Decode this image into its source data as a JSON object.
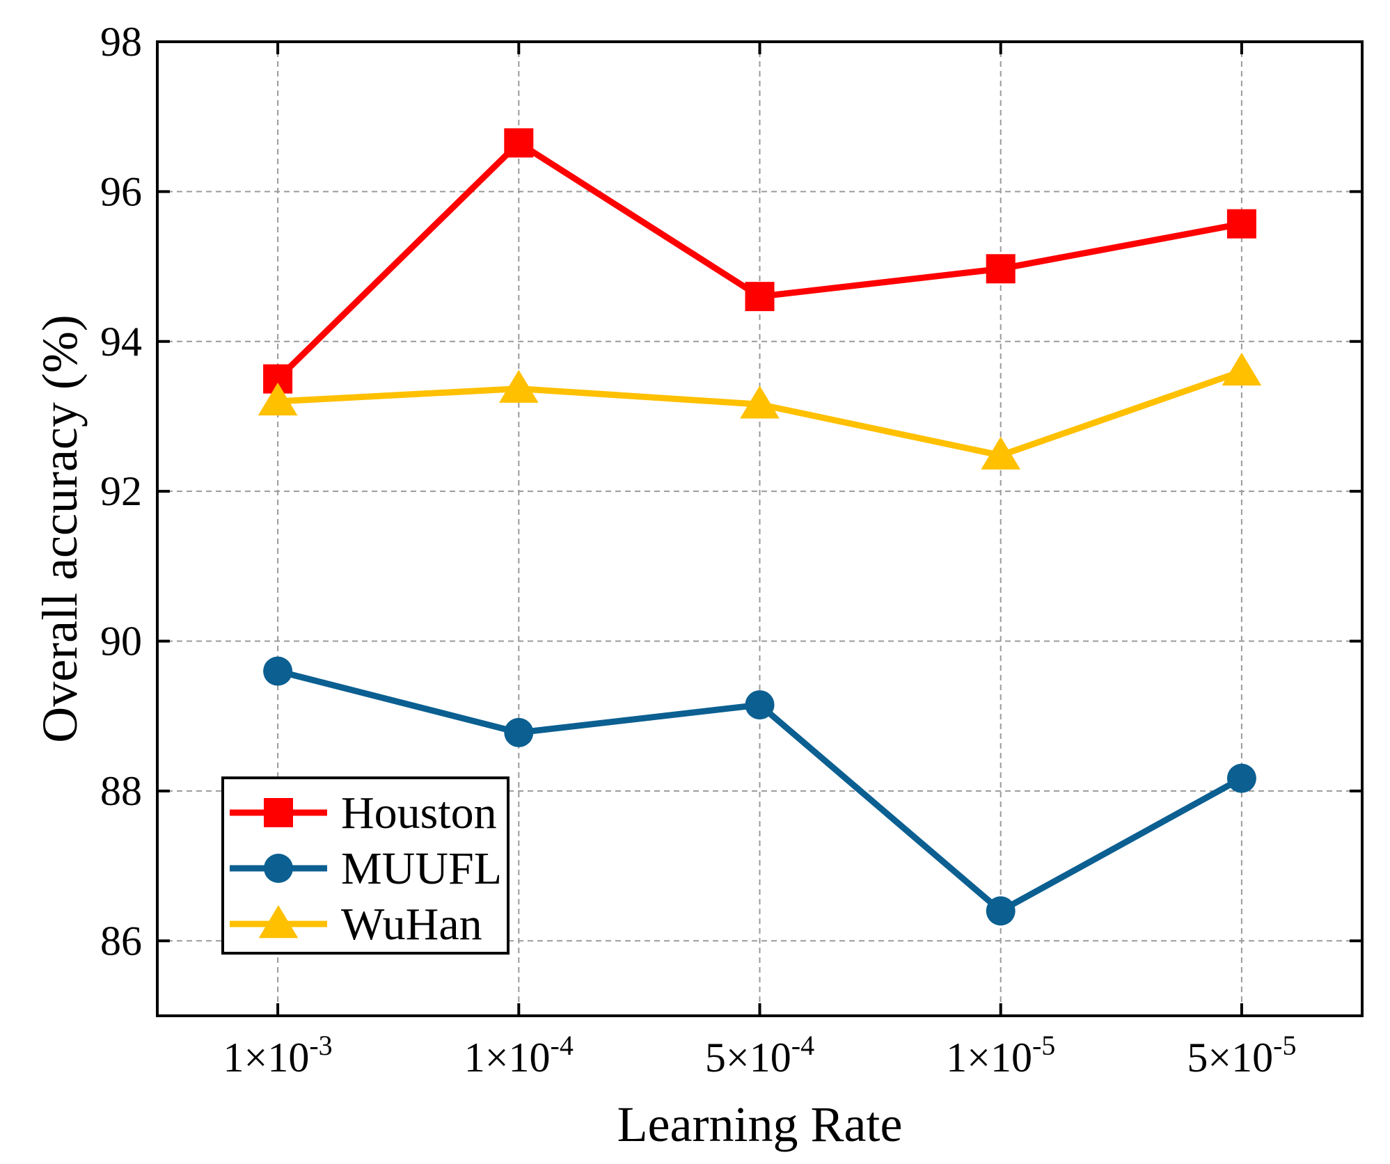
{
  "chart_data": {
    "type": "line",
    "title": "",
    "xlabel": "Learning Rate",
    "ylabel": "Overall accuracy (%)",
    "categories": [
      {
        "base": "1×10",
        "exp": "-3"
      },
      {
        "base": "1×10",
        "exp": "-4"
      },
      {
        "base": "5×10",
        "exp": "-4"
      },
      {
        "base": "1×10",
        "exp": "-5"
      },
      {
        "base": "5×10",
        "exp": "-5"
      }
    ],
    "ylim": [
      85,
      98
    ],
    "yticks": [
      86,
      88,
      90,
      92,
      94,
      96,
      98
    ],
    "grid": true,
    "legend_position": "bottom-left",
    "series": [
      {
        "name": "Houston",
        "color": "#ff0000",
        "marker": "square",
        "values": [
          93.5,
          96.65,
          94.6,
          94.97,
          95.57
        ]
      },
      {
        "name": "MUUFL",
        "color": "#0b5f91",
        "marker": "circle",
        "values": [
          89.6,
          88.78,
          89.15,
          86.4,
          88.17
        ]
      },
      {
        "name": "WuHan",
        "color": "#ffc000",
        "marker": "triangle",
        "values": [
          93.2,
          93.37,
          93.16,
          92.48,
          93.6
        ]
      }
    ]
  }
}
